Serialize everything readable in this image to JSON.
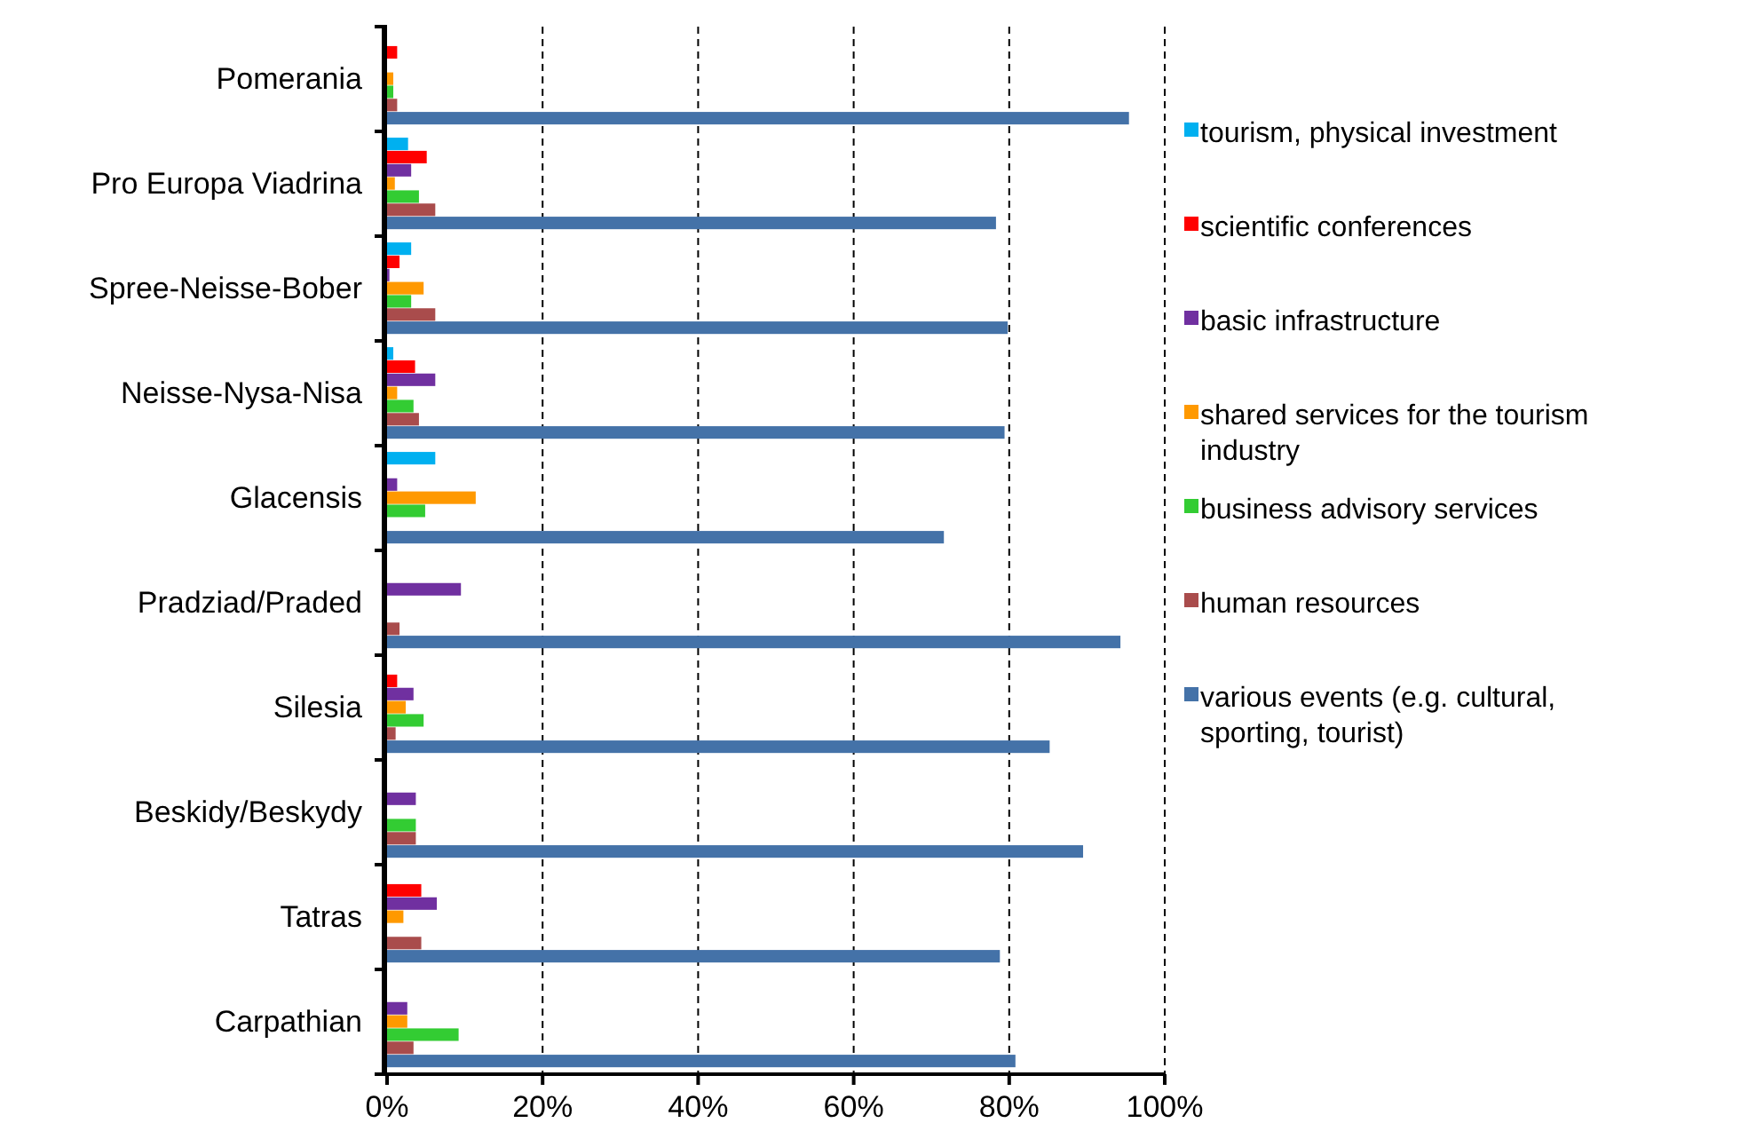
{
  "chart_data": {
    "type": "bar",
    "orientation": "horizontal",
    "categories": [
      "Pomerania",
      "Pro Europa Viadrina",
      "Spree-Neisse-Bober",
      "Neisse-Nysa-Nisa",
      "Glacensis",
      "Pradziad/Praded",
      "Silesia",
      "Beskidy/Beskydy",
      "Tatras",
      "Carpathian"
    ],
    "series": [
      {
        "name": "tourism, physical investment",
        "color": "#00b0f0",
        "values": [
          null,
          2.7,
          3.1,
          0.8,
          6.2,
          null,
          null,
          null,
          null,
          null
        ]
      },
      {
        "name": "scientific conferences",
        "color": "#ff0000",
        "values": [
          1.3,
          5.1,
          1.6,
          3.6,
          null,
          null,
          1.3,
          null,
          4.4,
          null
        ]
      },
      {
        "name": "basic infrastructure",
        "color": "#7030a0",
        "values": [
          null,
          3.1,
          0.3,
          6.2,
          1.3,
          9.5,
          3.4,
          3.7,
          6.4,
          2.6
        ]
      },
      {
        "name": "shared services for the tourism industry",
        "color": "#ff9900",
        "values": [
          0.8,
          1.0,
          4.7,
          1.3,
          11.4,
          null,
          2.4,
          null,
          2.1,
          2.6
        ]
      },
      {
        "name": "business advisory services",
        "color": "#33cc33",
        "values": [
          0.8,
          4.1,
          3.1,
          3.4,
          4.9,
          null,
          4.7,
          3.7,
          null,
          9.2
        ]
      },
      {
        "name": "human resources",
        "color": "#a94c4c",
        "values": [
          1.3,
          6.2,
          6.2,
          4.1,
          null,
          1.6,
          1.1,
          3.7,
          4.4,
          3.4
        ]
      },
      {
        "name": "various events (e.g. cultural, sporting, tourist)",
        "color": "#4472a8",
        "values": [
          95.4,
          78.3,
          79.8,
          79.4,
          71.6,
          94.3,
          85.2,
          89.5,
          78.8,
          80.8
        ]
      }
    ],
    "xlim": [
      0,
      100
    ],
    "xticks": [
      {
        "value": 0,
        "label": "0%"
      },
      {
        "value": 20,
        "label": "20%"
      },
      {
        "value": 40,
        "label": "40%"
      },
      {
        "value": 60,
        "label": "60%"
      },
      {
        "value": 80,
        "label": "80%"
      },
      {
        "value": 100,
        "label": "100%"
      }
    ],
    "grid": "x",
    "legend": "right"
  }
}
